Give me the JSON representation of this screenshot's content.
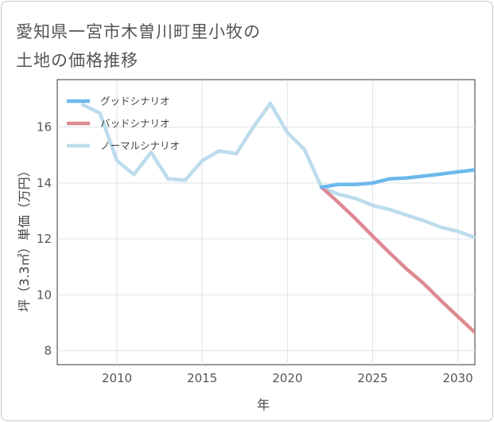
{
  "header": {
    "title_line1": "愛知県一宮市木曽川町里小牧の",
    "title_line2": "土地の価格推移"
  },
  "chart_data": {
    "type": "line",
    "title": "愛知県一宮市木曽川町里小牧の土地の価格推移",
    "xlabel": "年",
    "ylabel": "坪（3.3㎡）単価（万円）",
    "xlim": [
      2006.5,
      2031
    ],
    "ylim": [
      7.5,
      17.7
    ],
    "xticks": [
      2010,
      2015,
      2020,
      2025,
      2030
    ],
    "xtick_labels": [
      "2010",
      "2015",
      "2020",
      "2025",
      "2030"
    ],
    "yticks": [
      8,
      10,
      12,
      14,
      16
    ],
    "ytick_labels": [
      "8",
      "10",
      "12",
      "14",
      "16"
    ],
    "grid": true,
    "legend_position": "top-left",
    "series": [
      {
        "name": "グッドシナリオ",
        "color": "#6cb8ec",
        "x": [
          2022,
          2023,
          2024,
          2025,
          2026,
          2027,
          2028,
          2029,
          2030,
          2031
        ],
        "y": [
          13.85,
          13.95,
          13.95,
          14.0,
          14.15,
          14.18,
          14.25,
          14.32,
          14.4,
          14.47
        ]
      },
      {
        "name": "バッドシナリオ",
        "color": "#dc8a92",
        "x": [
          2022,
          2023,
          2024,
          2025,
          2026,
          2027,
          2028,
          2029,
          2030,
          2031
        ],
        "y": [
          13.85,
          13.3,
          12.72,
          12.1,
          11.5,
          10.92,
          10.4,
          9.8,
          9.22,
          8.65
        ]
      },
      {
        "name": "ノーマルシナリオ",
        "color": "#bcdcec",
        "x": [
          2008,
          2009,
          2010,
          2011,
          2012,
          2013,
          2014,
          2015,
          2016,
          2017,
          2018,
          2019,
          2020,
          2021,
          2022,
          2023,
          2024,
          2025,
          2026,
          2027,
          2028,
          2029,
          2030,
          2031
        ],
        "y": [
          16.8,
          16.5,
          14.8,
          14.3,
          15.1,
          14.15,
          14.1,
          14.8,
          15.15,
          15.05,
          16.0,
          16.85,
          15.8,
          15.2,
          13.85,
          13.6,
          13.45,
          13.2,
          13.05,
          12.85,
          12.65,
          12.42,
          12.27,
          12.05
        ]
      }
    ]
  }
}
